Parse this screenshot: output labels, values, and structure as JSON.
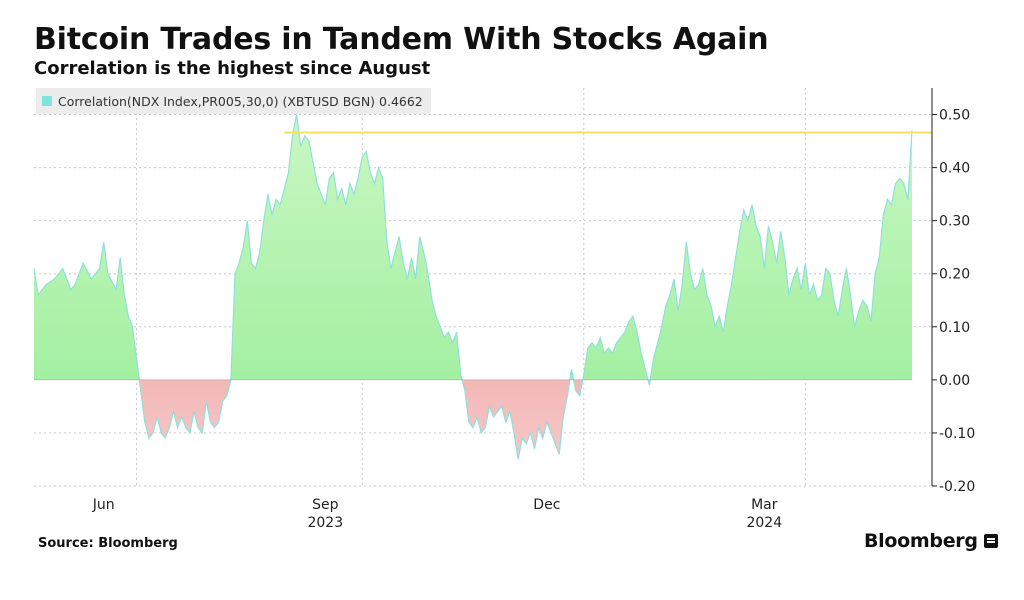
{
  "header": {
    "title": "Bitcoin Trades in Tandem With Stocks Again",
    "subtitle": "Correlation is the highest since August"
  },
  "legend": {
    "label": "Correlation(NDX Index,PR005,30,0) (XBTUSD BGN) 0.4662"
  },
  "footer": {
    "source": "Source: Bloomberg",
    "brand": "Bloomberg"
  },
  "colors": {
    "positive_fill": "#98ee98",
    "positive_fill_light": "#c9f7c2",
    "negative_fill": "#e98080",
    "negative_fill_light": "#f6c8c8",
    "line": "#8fe0dc",
    "ref_line": "#f2e25c",
    "grid": "#c9c9c9",
    "zero_line": "#999999"
  },
  "chart_data": {
    "type": "area",
    "title": "Bitcoin Trades in Tandem With Stocks Again",
    "subtitle": "Correlation is the highest since August",
    "series": [
      {
        "name": "Correlation(NDX Index,PR005,30,0) (XBTUSD BGN)",
        "last_value": 0.4662,
        "values": [
          [
            0,
            0.21
          ],
          [
            1,
            0.16
          ],
          [
            3,
            0.18
          ],
          [
            5,
            0.19
          ],
          [
            7,
            0.21
          ],
          [
            9,
            0.17
          ],
          [
            10,
            0.18
          ],
          [
            12,
            0.22
          ],
          [
            14,
            0.19
          ],
          [
            16,
            0.21
          ],
          [
            17,
            0.26
          ],
          [
            18,
            0.2
          ],
          [
            20,
            0.17
          ],
          [
            21,
            0.23
          ],
          [
            22,
            0.16
          ],
          [
            23,
            0.12
          ],
          [
            24,
            0.1
          ],
          [
            25,
            0.04
          ],
          [
            26,
            -0.02
          ],
          [
            27,
            -0.08
          ],
          [
            28,
            -0.11
          ],
          [
            29,
            -0.1
          ],
          [
            30,
            -0.07
          ],
          [
            31,
            -0.1
          ],
          [
            32,
            -0.11
          ],
          [
            33,
            -0.09
          ],
          [
            34,
            -0.06
          ],
          [
            35,
            -0.09
          ],
          [
            36,
            -0.07
          ],
          [
            37,
            -0.09
          ],
          [
            38,
            -0.1
          ],
          [
            39,
            -0.06
          ],
          [
            40,
            -0.09
          ],
          [
            41,
            -0.1
          ],
          [
            42,
            -0.04
          ],
          [
            43,
            -0.08
          ],
          [
            44,
            -0.09
          ],
          [
            45,
            -0.08
          ],
          [
            46,
            -0.04
          ],
          [
            47,
            -0.03
          ],
          [
            48,
            0.0
          ],
          [
            49,
            0.2
          ],
          [
            50,
            0.22
          ],
          [
            51,
            0.25
          ],
          [
            52,
            0.3
          ],
          [
            53,
            0.22
          ],
          [
            54,
            0.21
          ],
          [
            55,
            0.24
          ],
          [
            56,
            0.3
          ],
          [
            57,
            0.35
          ],
          [
            58,
            0.31
          ],
          [
            59,
            0.34
          ],
          [
            60,
            0.33
          ],
          [
            61,
            0.36
          ],
          [
            62,
            0.39
          ],
          [
            63,
            0.46
          ],
          [
            64,
            0.5
          ],
          [
            65,
            0.44
          ],
          [
            66,
            0.46
          ],
          [
            67,
            0.45
          ],
          [
            68,
            0.41
          ],
          [
            69,
            0.37
          ],
          [
            70,
            0.35
          ],
          [
            71,
            0.33
          ],
          [
            72,
            0.38
          ],
          [
            73,
            0.39
          ],
          [
            74,
            0.34
          ],
          [
            75,
            0.36
          ],
          [
            76,
            0.33
          ],
          [
            77,
            0.37
          ],
          [
            78,
            0.35
          ],
          [
            79,
            0.38
          ],
          [
            80,
            0.42
          ],
          [
            81,
            0.43
          ],
          [
            82,
            0.39
          ],
          [
            83,
            0.37
          ],
          [
            84,
            0.4
          ],
          [
            85,
            0.38
          ],
          [
            86,
            0.26
          ],
          [
            87,
            0.21
          ],
          [
            88,
            0.24
          ],
          [
            89,
            0.27
          ],
          [
            90,
            0.22
          ],
          [
            91,
            0.19
          ],
          [
            92,
            0.23
          ],
          [
            93,
            0.19
          ],
          [
            94,
            0.27
          ],
          [
            95,
            0.24
          ],
          [
            96,
            0.2
          ],
          [
            97,
            0.15
          ],
          [
            98,
            0.12
          ],
          [
            99,
            0.1
          ],
          [
            100,
            0.08
          ],
          [
            101,
            0.09
          ],
          [
            102,
            0.07
          ],
          [
            103,
            0.09
          ],
          [
            104,
            0.01
          ],
          [
            105,
            -0.02
          ],
          [
            106,
            -0.08
          ],
          [
            107,
            -0.09
          ],
          [
            108,
            -0.07
          ],
          [
            109,
            -0.1
          ],
          [
            110,
            -0.09
          ],
          [
            111,
            -0.05
          ],
          [
            112,
            -0.07
          ],
          [
            113,
            -0.06
          ],
          [
            114,
            -0.05
          ],
          [
            115,
            -0.08
          ],
          [
            116,
            -0.06
          ],
          [
            117,
            -0.1
          ],
          [
            118,
            -0.15
          ],
          [
            119,
            -0.11
          ],
          [
            120,
            -0.12
          ],
          [
            121,
            -0.1
          ],
          [
            122,
            -0.13
          ],
          [
            123,
            -0.09
          ],
          [
            124,
            -0.11
          ],
          [
            125,
            -0.08
          ],
          [
            126,
            -0.1
          ],
          [
            127,
            -0.12
          ],
          [
            128,
            -0.14
          ],
          [
            129,
            -0.07
          ],
          [
            130,
            -0.03
          ],
          [
            131,
            0.02
          ],
          [
            132,
            -0.02
          ],
          [
            133,
            -0.03
          ],
          [
            134,
            0.01
          ],
          [
            135,
            0.06
          ],
          [
            136,
            0.07
          ],
          [
            137,
            0.06
          ],
          [
            138,
            0.08
          ],
          [
            139,
            0.05
          ],
          [
            140,
            0.06
          ],
          [
            141,
            0.05
          ],
          [
            142,
            0.07
          ],
          [
            143,
            0.08
          ],
          [
            144,
            0.09
          ],
          [
            145,
            0.11
          ],
          [
            146,
            0.12
          ],
          [
            147,
            0.09
          ],
          [
            148,
            0.05
          ],
          [
            149,
            0.02
          ],
          [
            150,
            -0.01
          ],
          [
            151,
            0.04
          ],
          [
            152,
            0.07
          ],
          [
            153,
            0.1
          ],
          [
            154,
            0.14
          ],
          [
            155,
            0.16
          ],
          [
            156,
            0.19
          ],
          [
            157,
            0.13
          ],
          [
            158,
            0.18
          ],
          [
            159,
            0.26
          ],
          [
            160,
            0.2
          ],
          [
            161,
            0.17
          ],
          [
            162,
            0.18
          ],
          [
            163,
            0.21
          ],
          [
            164,
            0.16
          ],
          [
            165,
            0.14
          ],
          [
            166,
            0.1
          ],
          [
            167,
            0.12
          ],
          [
            168,
            0.09
          ],
          [
            169,
            0.14
          ],
          [
            170,
            0.18
          ],
          [
            171,
            0.23
          ],
          [
            172,
            0.28
          ],
          [
            173,
            0.32
          ],
          [
            174,
            0.3
          ],
          [
            175,
            0.33
          ],
          [
            176,
            0.29
          ],
          [
            177,
            0.27
          ],
          [
            178,
            0.21
          ],
          [
            179,
            0.29
          ],
          [
            180,
            0.26
          ],
          [
            181,
            0.22
          ],
          [
            182,
            0.28
          ],
          [
            183,
            0.23
          ],
          [
            184,
            0.16
          ],
          [
            185,
            0.19
          ],
          [
            186,
            0.21
          ],
          [
            187,
            0.17
          ],
          [
            188,
            0.22
          ],
          [
            189,
            0.16
          ],
          [
            190,
            0.18
          ],
          [
            191,
            0.15
          ],
          [
            192,
            0.16
          ],
          [
            193,
            0.21
          ],
          [
            194,
            0.2
          ],
          [
            195,
            0.15
          ],
          [
            196,
            0.12
          ],
          [
            197,
            0.17
          ],
          [
            198,
            0.21
          ],
          [
            199,
            0.16
          ],
          [
            200,
            0.1
          ],
          [
            201,
            0.13
          ],
          [
            202,
            0.15
          ],
          [
            203,
            0.14
          ],
          [
            204,
            0.11
          ],
          [
            205,
            0.2
          ],
          [
            206,
            0.23
          ],
          [
            207,
            0.31
          ],
          [
            208,
            0.34
          ],
          [
            209,
            0.33
          ],
          [
            210,
            0.37
          ],
          [
            211,
            0.38
          ],
          [
            212,
            0.37
          ],
          [
            213,
            0.34
          ],
          [
            214,
            0.47
          ]
        ]
      }
    ],
    "xlim": [
      0,
      214
    ],
    "ylim": [
      -0.2,
      0.55
    ],
    "yticks": [
      -0.2,
      -0.1,
      0.0,
      0.1,
      0.2,
      0.3,
      0.4,
      0.5
    ],
    "ytick_labels": [
      "-0.20",
      "-0.10",
      "0.00",
      "0.10",
      "0.20",
      "0.30",
      "0.40",
      "0.50"
    ],
    "xticks": [
      {
        "x": 17,
        "label": "Jun",
        "sublabel": ""
      },
      {
        "x": 71,
        "label": "Sep",
        "sublabel": "2023"
      },
      {
        "x": 125,
        "label": "Dec",
        "sublabel": ""
      },
      {
        "x": 178,
        "label": "Mar",
        "sublabel": "2024"
      }
    ],
    "x_gridlines": [
      25,
      80,
      134,
      188
    ],
    "reference_line": {
      "value": 0.4662,
      "from_x": 61,
      "to_x": 220
    },
    "grid": true,
    "legend_position": "top-left"
  }
}
